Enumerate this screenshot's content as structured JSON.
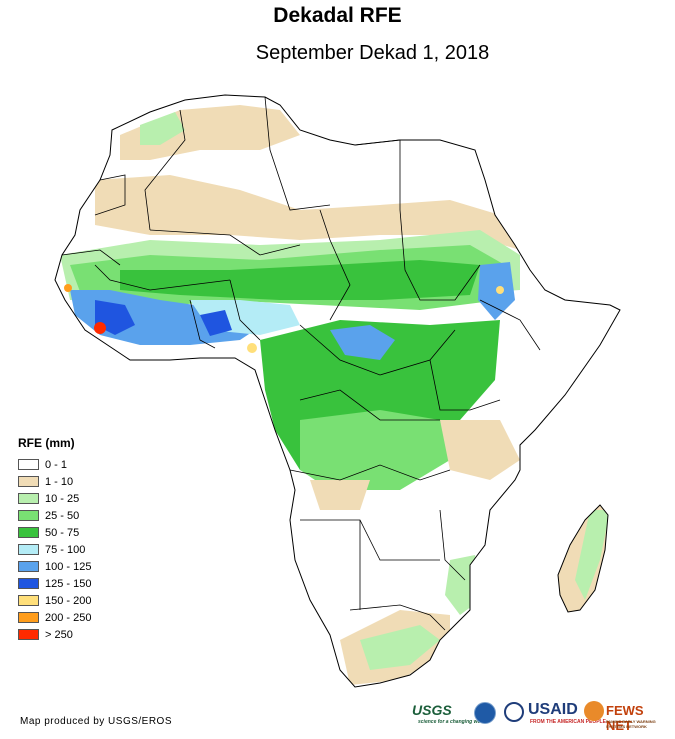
{
  "title": "Dekadal RFE",
  "subtitle": "September Dekad 1, 2018",
  "legend": {
    "title": "RFE (mm)",
    "items": [
      {
        "label": "0 - 1",
        "color": "#ffffff"
      },
      {
        "label": "1 - 10",
        "color": "#f0dcb6"
      },
      {
        "label": "10 - 25",
        "color": "#b8efae"
      },
      {
        "label": "25 - 50",
        "color": "#79e073"
      },
      {
        "label": "50 - 75",
        "color": "#39c23d"
      },
      {
        "label": "75 - 100",
        "color": "#b4ecf6"
      },
      {
        "label": "100 - 125",
        "color": "#5aa2ec"
      },
      {
        "label": "125 - 150",
        "color": "#1f55e0"
      },
      {
        "label": "150 - 200",
        "color": "#ffdf7a"
      },
      {
        "label": "200 - 250",
        "color": "#ff9d1c"
      },
      {
        "label": "> 250",
        "color": "#ff2a00"
      }
    ]
  },
  "credit": "Map produced by USGS/EROS",
  "logos": {
    "usgs": "USGS",
    "usgs_tagline": "science for a changing world",
    "usaid": "USAID",
    "usaid_tagline": "FROM THE AMERICAN PEOPLE",
    "fews": "FEWS NET",
    "fews_tagline": "FAMINE EARLY WARNING SYSTEMS NETWORK"
  }
}
